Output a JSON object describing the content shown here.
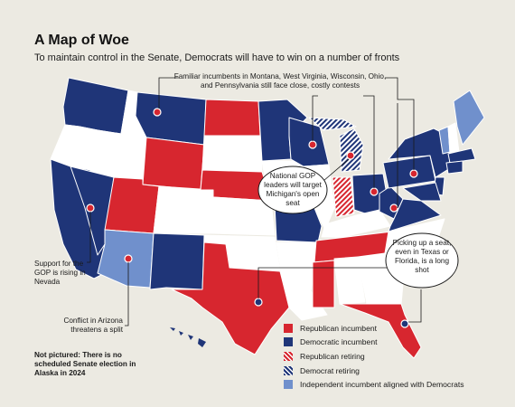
{
  "title": "A Map of Woe",
  "subtitle": "To maintain control in the Senate, Democrats will have to win on a number of fronts",
  "annotations": {
    "familiar_incumbents": "Familiar incumbents in Montana, West Virginia, Wisconsin, Ohio, and Pennsylvania still face close, costly contests",
    "michigan": "National GOP leaders will target Michigan's open seat",
    "texas_florida": "Picking up a seat, even in Texas or Florida, is a long shot",
    "nevada": "Support for the GOP is rising in Nevada",
    "arizona": "Conflict in Arizona threatens a split",
    "alaska": "Not pictured: There is no scheduled Senate election in Alaska in 2024"
  },
  "legend": [
    {
      "label": "Republican incumbent",
      "pattern": "solid",
      "color": "#d7262f"
    },
    {
      "label": "Democratic incumbent",
      "pattern": "solid",
      "color": "#1f3578"
    },
    {
      "label": "Republican retiring",
      "pattern": "hatched",
      "color": "#d7262f"
    },
    {
      "label": "Democrat retiring",
      "pattern": "hatched",
      "color": "#1f3578"
    },
    {
      "label": "Independent incumbent aligned with Democrats",
      "pattern": "solid",
      "color": "#7090cc"
    }
  ],
  "colors": {
    "republican": "#d7262f",
    "democrat": "#1f3578",
    "independent": "#7090cc",
    "no_election": "#ffffff",
    "background": "#eceae2"
  },
  "highlighted_states": [
    "Montana",
    "West Virginia",
    "Wisconsin",
    "Ohio",
    "Pennsylvania",
    "Michigan",
    "Nevada",
    "Arizona",
    "Texas",
    "Florida"
  ]
}
